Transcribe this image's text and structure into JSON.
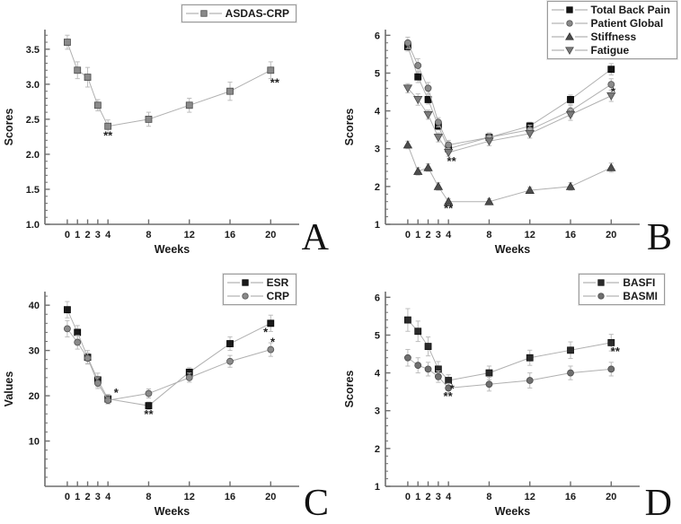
{
  "figure": {
    "background": "#ffffff",
    "axis_color": "#6e6e6e",
    "line_color": "#b0b0b0",
    "error_color": "#bdbdbd",
    "text_color": "#1a1a1a",
    "weeks": [
      0,
      1,
      2,
      3,
      4,
      8,
      12,
      16,
      20
    ]
  },
  "chart_data": [
    {
      "type": "line",
      "label": "A",
      "xlabel": "Weeks",
      "ylabel": "Scores",
      "x": [
        0,
        1,
        2,
        3,
        4,
        8,
        12,
        16,
        20
      ],
      "xtick_labels": [
        "0",
        "1",
        "2",
        "3",
        "4",
        "8",
        "12",
        "16",
        "20"
      ],
      "xlim": [
        -2.2,
        22.8
      ],
      "ylim": [
        1.0,
        3.78
      ],
      "yticks": [
        1.0,
        1.5,
        2.0,
        2.5,
        3.0,
        3.5
      ],
      "ytick_labels": [
        "1.0",
        "1.5",
        "2.0",
        "2.5",
        "3.0",
        "3.5"
      ],
      "minor_step": 0.1,
      "legend_position": "top-right",
      "grid": false,
      "series": [
        {
          "name": "ASDAS-CRP",
          "marker": "square",
          "fill": "#8a8a8a",
          "stroke": "#4a4a4a",
          "values": [
            3.6,
            3.2,
            3.1,
            2.7,
            2.4,
            2.5,
            2.7,
            2.9,
            3.2
          ],
          "err": [
            0.1,
            0.12,
            0.14,
            0.08,
            0.09,
            0.1,
            0.1,
            0.13,
            0.12
          ]
        }
      ],
      "annotations": [
        {
          "x": 4,
          "y": 2.26,
          "text": "**"
        },
        {
          "x": 20.4,
          "y": 3.02,
          "text": "**"
        }
      ]
    },
    {
      "type": "line",
      "label": "B",
      "xlabel": "Weeks",
      "ylabel": "Scores",
      "x": [
        0,
        1,
        2,
        3,
        4,
        8,
        12,
        16,
        20
      ],
      "xtick_labels": [
        "0",
        "1",
        "2",
        "3",
        "4",
        "8",
        "12",
        "16",
        "20"
      ],
      "xlim": [
        -2.2,
        22.8
      ],
      "ylim": [
        1.0,
        6.15
      ],
      "yticks": [
        1,
        2,
        3,
        4,
        5,
        6
      ],
      "ytick_labels": [
        "1",
        "2",
        "3",
        "4",
        "5",
        "6"
      ],
      "minor_step": 0.2,
      "legend_position": "top-right",
      "grid": false,
      "series": [
        {
          "name": "Total Back Pain",
          "marker": "square",
          "fill": "#141414",
          "stroke": "#000000",
          "values": [
            5.7,
            4.9,
            4.3,
            3.6,
            3.0,
            3.3,
            3.6,
            4.3,
            5.1
          ],
          "err": [
            0.12,
            0.15,
            0.12,
            0.1,
            0.1,
            0.1,
            0.1,
            0.12,
            0.15
          ]
        },
        {
          "name": "Patient Global",
          "marker": "circle",
          "fill": "#8a8a8a",
          "stroke": "#505050",
          "values": [
            5.8,
            5.2,
            4.6,
            3.7,
            3.1,
            3.3,
            3.5,
            4.0,
            4.7
          ],
          "err": [
            0.15,
            0.18,
            0.15,
            0.12,
            0.12,
            0.12,
            0.12,
            0.15,
            0.15
          ]
        },
        {
          "name": "Stiffness",
          "marker": "triangle-up",
          "fill": "#4d4d4d",
          "stroke": "#333333",
          "values": [
            3.1,
            2.4,
            2.5,
            2.0,
            1.6,
            1.6,
            1.9,
            2.0,
            2.5
          ],
          "err": [
            0.1,
            0.1,
            0.1,
            0.1,
            0.08,
            0.08,
            0.08,
            0.1,
            0.12
          ]
        },
        {
          "name": "Fatigue",
          "marker": "triangle-down",
          "fill": "#7a7a7a",
          "stroke": "#4a4a4a",
          "values": [
            4.6,
            4.3,
            3.9,
            3.3,
            2.9,
            3.2,
            3.4,
            3.9,
            4.4
          ],
          "err": [
            0.12,
            0.15,
            0.12,
            0.12,
            0.1,
            0.12,
            0.12,
            0.15,
            0.15
          ]
        }
      ],
      "annotations": [
        {
          "x": 4.3,
          "y": 2.66,
          "text": "**"
        },
        {
          "x": 4,
          "y": 1.41,
          "text": "**"
        },
        {
          "x": 20.2,
          "y": 4.5,
          "text": "*"
        }
      ]
    },
    {
      "type": "line",
      "label": "C",
      "xlabel": "Weeks",
      "ylabel": "Values",
      "x": [
        0,
        1,
        2,
        3,
        4,
        8,
        12,
        16,
        20
      ],
      "xtick_labels": [
        "0",
        "1",
        "2",
        "3",
        "4",
        "8",
        "12",
        "16",
        "20"
      ],
      "xlim": [
        -2.2,
        22.8
      ],
      "ylim": [
        0,
        43
      ],
      "yticks": [
        10,
        20,
        30,
        40
      ],
      "ytick_labels": [
        "10",
        "20",
        "30",
        "40"
      ],
      "minor_step": 2,
      "legend_position": "top-right",
      "grid": false,
      "series": [
        {
          "name": "ESR",
          "marker": "square",
          "fill": "#1a1a1a",
          "stroke": "#000000",
          "values": [
            39,
            34,
            28.5,
            23.5,
            19.3,
            17.8,
            25.2,
            31.5,
            36
          ],
          "err": [
            1.8,
            1.5,
            1.5,
            1.5,
            1.0,
            0.8,
            1.0,
            1.5,
            1.8
          ]
        },
        {
          "name": "CRP",
          "marker": "circle",
          "fill": "#8a8a8a",
          "stroke": "#505050",
          "values": [
            34.8,
            31.8,
            28.3,
            22.8,
            19.0,
            20.5,
            24.0,
            27.6,
            30.2
          ],
          "err": [
            1.8,
            1.5,
            1.2,
            1.2,
            0.8,
            1.0,
            1.0,
            1.3,
            1.5
          ]
        }
      ],
      "annotations": [
        {
          "x": 4.8,
          "y": 20.6,
          "text": "*"
        },
        {
          "x": 8,
          "y": 15.9,
          "text": "**"
        },
        {
          "x": 19.5,
          "y": 34.0,
          "text": "*"
        },
        {
          "x": 20.2,
          "y": 31.8,
          "text": "*"
        }
      ]
    },
    {
      "type": "line",
      "label": "D",
      "xlabel": "Weeks",
      "ylabel": "Scores",
      "x": [
        0,
        1,
        2,
        3,
        4,
        8,
        12,
        16,
        20
      ],
      "xtick_labels": [
        "0",
        "1",
        "2",
        "3",
        "4",
        "8",
        "12",
        "16",
        "20"
      ],
      "xlim": [
        -2.2,
        22.8
      ],
      "ylim": [
        1.0,
        6.15
      ],
      "yticks": [
        1,
        2,
        3,
        4,
        5,
        6
      ],
      "ytick_labels": [
        "1",
        "2",
        "3",
        "4",
        "5",
        "6"
      ],
      "minor_step": 0.2,
      "legend_position": "top-right",
      "grid": false,
      "series": [
        {
          "name": "BASFI",
          "marker": "square",
          "fill": "#2b2b2b",
          "stroke": "#111111",
          "values": [
            5.4,
            5.1,
            4.7,
            4.1,
            3.8,
            4.0,
            4.4,
            4.6,
            4.8
          ],
          "err": [
            0.3,
            0.27,
            0.25,
            0.2,
            0.15,
            0.18,
            0.2,
            0.22,
            0.22
          ]
        },
        {
          "name": "BASMI",
          "marker": "circle",
          "fill": "#6f6f6f",
          "stroke": "#4a4a4a",
          "values": [
            4.4,
            4.2,
            4.1,
            3.9,
            3.6,
            3.7,
            3.8,
            4.0,
            4.1
          ],
          "err": [
            0.22,
            0.2,
            0.18,
            0.15,
            0.12,
            0.18,
            0.2,
            0.18,
            0.18
          ]
        }
      ],
      "annotations": [
        {
          "x": 4.35,
          "y": 3.58,
          "text": "*"
        },
        {
          "x": 3.95,
          "y": 3.37,
          "text": "**"
        },
        {
          "x": 20.4,
          "y": 4.56,
          "text": "**"
        }
      ]
    }
  ]
}
